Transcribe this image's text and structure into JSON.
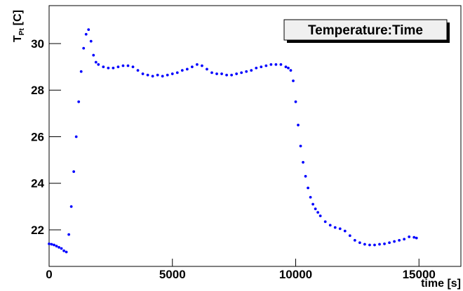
{
  "chart_data": {
    "type": "scatter",
    "legend_title": "Temperature:Time",
    "x_label": "time [s]",
    "y_label": "T",
    "y_label_sub": "Pt",
    "y_label_unit": "[C]",
    "color": "#0000ff",
    "xlim": [
      0,
      16700
    ],
    "ylim": [
      20.43,
      31.63
    ],
    "xticks": [
      0,
      5000,
      10000,
      15000
    ],
    "yticks": [
      22,
      24,
      26,
      28,
      30
    ],
    "x": [
      0,
      100,
      200,
      300,
      400,
      500,
      600,
      700,
      800,
      900,
      1000,
      1100,
      1200,
      1300,
      1400,
      1500,
      1600,
      1700,
      1800,
      1900,
      2000,
      2200,
      2400,
      2600,
      2800,
      3000,
      3200,
      3400,
      3600,
      3800,
      4000,
      4200,
      4400,
      4600,
      4800,
      5000,
      5200,
      5400,
      5600,
      5800,
      6000,
      6200,
      6400,
      6600,
      6800,
      7000,
      7200,
      7400,
      7600,
      7800,
      8000,
      8200,
      8400,
      8600,
      8800,
      9000,
      9200,
      9400,
      9600,
      9700,
      9800,
      9900,
      10000,
      10100,
      10200,
      10300,
      10400,
      10500,
      10600,
      10700,
      10800,
      10900,
      11000,
      11200,
      11400,
      11600,
      11800,
      12000,
      12200,
      12400,
      12600,
      12800,
      13000,
      13200,
      13400,
      13600,
      13800,
      14000,
      14200,
      14400,
      14600,
      14800,
      14900
    ],
    "values": [
      21.4,
      21.38,
      21.35,
      21.3,
      21.25,
      21.2,
      21.1,
      21.05,
      21.8,
      23.0,
      24.5,
      26.0,
      27.5,
      28.8,
      29.8,
      30.4,
      30.6,
      30.1,
      29.5,
      29.2,
      29.1,
      29.0,
      28.95,
      28.95,
      29.0,
      29.05,
      29.05,
      29.0,
      28.85,
      28.7,
      28.65,
      28.6,
      28.65,
      28.6,
      28.65,
      28.7,
      28.75,
      28.85,
      28.9,
      29.0,
      29.1,
      29.05,
      28.9,
      28.75,
      28.7,
      28.7,
      28.65,
      28.65,
      28.7,
      28.75,
      28.8,
      28.85,
      28.95,
      29.0,
      29.05,
      29.1,
      29.1,
      29.1,
      29.0,
      28.95,
      28.85,
      28.4,
      27.5,
      26.5,
      25.6,
      24.9,
      24.3,
      23.8,
      23.4,
      23.1,
      22.9,
      22.75,
      22.6,
      22.35,
      22.2,
      22.1,
      22.05,
      21.95,
      21.75,
      21.55,
      21.45,
      21.38,
      21.35,
      21.35,
      21.38,
      21.4,
      21.45,
      21.5,
      21.55,
      21.6,
      21.7,
      21.68,
      21.65
    ]
  }
}
